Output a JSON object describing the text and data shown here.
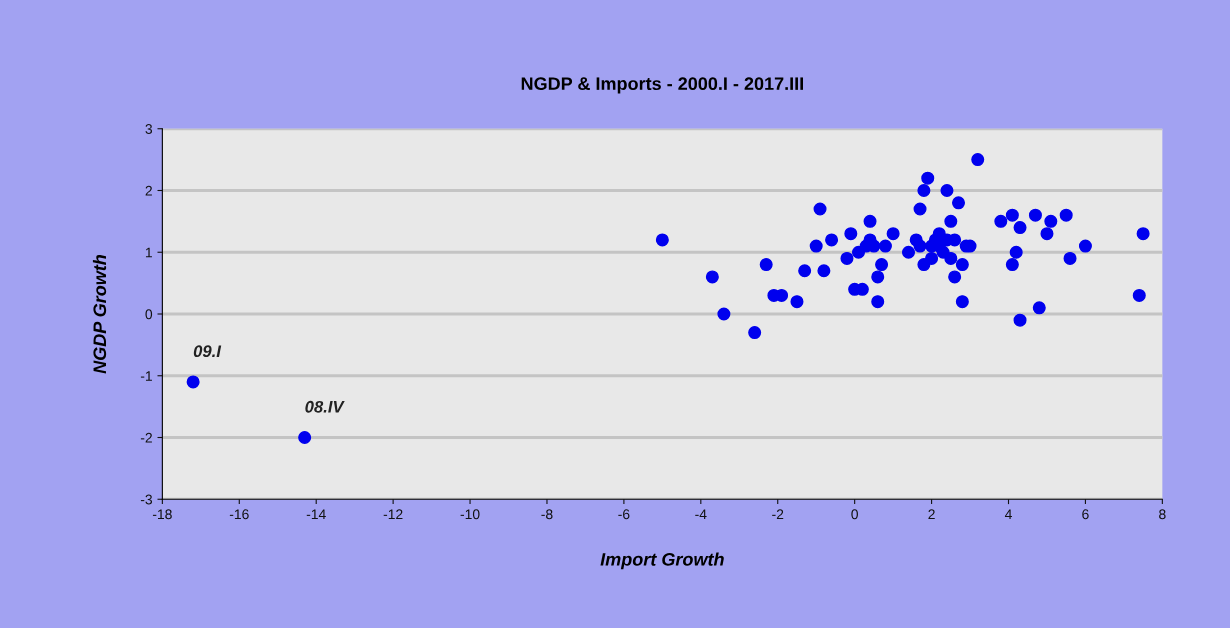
{
  "chart_data": {
    "type": "scatter",
    "title": "NGDP & Imports - 2000.I - 2017.III",
    "xlabel": "Import Growth",
    "ylabel": "NGDP Growth",
    "x": [
      -17.2,
      -14.3,
      -5.0,
      -3.7,
      -3.4,
      -2.6,
      -2.3,
      -2.1,
      -1.9,
      -1.5,
      -1.3,
      -0.9,
      -1.0,
      -0.8,
      -0.6,
      -0.2,
      -0.1,
      0.0,
      0.1,
      0.2,
      0.3,
      0.4,
      0.4,
      0.5,
      0.6,
      0.6,
      0.7,
      0.8,
      1.0,
      1.4,
      1.6,
      1.7,
      1.7,
      1.8,
      1.9,
      1.8,
      2.0,
      2.1,
      2.2,
      2.3,
      2.4,
      2.5,
      2.5,
      2.6,
      2.6,
      2.7,
      2.8,
      2.8,
      2.9,
      3.0,
      3.2,
      3.8,
      4.1,
      4.1,
      4.2,
      4.3,
      4.3,
      4.7,
      4.8,
      5.0,
      5.1,
      5.5,
      5.6,
      6.0,
      7.4,
      7.5,
      2.0,
      2.2,
      2.4
    ],
    "series": [
      {
        "color": "#0000ee",
        "values": [
          -1.1,
          -2.0,
          1.2,
          0.6,
          0.0,
          -0.3,
          0.8,
          0.3,
          0.3,
          0.2,
          0.7,
          1.7,
          1.1,
          0.7,
          1.2,
          0.9,
          1.3,
          0.4,
          1.0,
          0.4,
          1.1,
          1.5,
          1.2,
          1.1,
          0.6,
          0.2,
          0.8,
          1.1,
          1.3,
          1.0,
          1.2,
          1.7,
          1.1,
          2.0,
          2.2,
          0.8,
          0.9,
          1.2,
          1.3,
          1.0,
          2.0,
          1.5,
          0.9,
          1.2,
          0.6,
          1.8,
          0.8,
          0.2,
          1.1,
          1.1,
          2.5,
          1.5,
          0.8,
          1.6,
          1.0,
          1.4,
          -0.1,
          1.6,
          0.1,
          1.3,
          1.5,
          1.6,
          0.9,
          1.1,
          0.3,
          1.3,
          1.1,
          1.1,
          1.2
        ]
      }
    ],
    "xlim": [
      -18,
      8
    ],
    "xticks": [
      -18,
      -16,
      -14,
      -12,
      -10,
      -8,
      -6,
      -4,
      -2,
      0,
      2,
      4,
      6,
      8
    ],
    "ylim": [
      -3,
      3
    ],
    "yticks": [
      -3,
      -2,
      -1,
      0,
      1,
      2,
      3
    ],
    "grid": "y",
    "marker": "circle",
    "legend": false,
    "annotations": [
      {
        "text": "09.I",
        "x": -17.2,
        "y": -1.1
      },
      {
        "text": "08.IV",
        "x": -14.3,
        "y": -2.0
      }
    ]
  }
}
